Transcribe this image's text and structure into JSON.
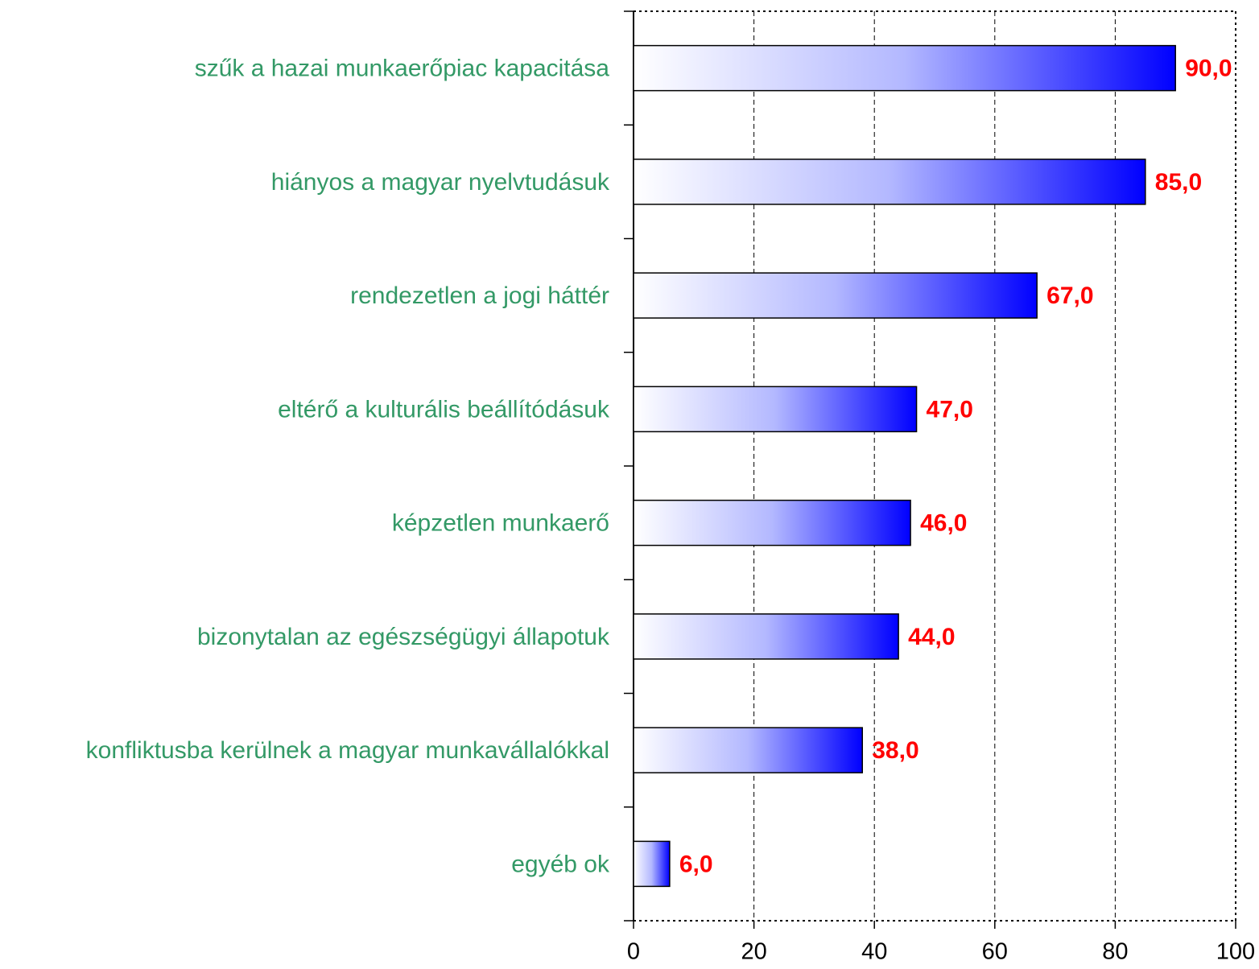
{
  "chart_data": {
    "type": "bar",
    "orientation": "horizontal",
    "categories": [
      "szűk a hazai munkaerőpiac kapacitása",
      "hiányos a magyar nyelvtudásuk",
      "rendezetlen a jogi háttér",
      "eltérő a kulturális beállítódásuk",
      "képzetlen munkaerő",
      "bizonytalan az egészségügyi állapotuk",
      "konfliktusba kerülnek a magyar munkavállalókkal",
      "egyéb ok"
    ],
    "values": [
      90,
      85,
      67,
      47,
      46,
      44,
      38,
      6
    ],
    "value_labels": [
      "90,0",
      "85,0",
      "67,0",
      "47,0",
      "46,0",
      "44,0",
      "38,0",
      "6,0"
    ],
    "color": "#0000ff",
    "xlim": [
      0,
      100
    ],
    "xticks": [
      0,
      20,
      40,
      60,
      80,
      100
    ],
    "grid": true
  }
}
